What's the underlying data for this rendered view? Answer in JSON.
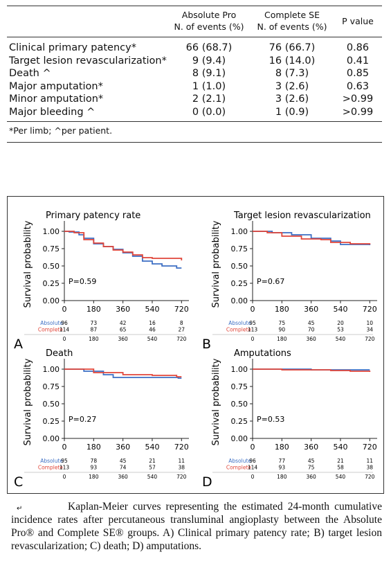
{
  "table": {
    "headers": [
      [
        "Absolute Pro",
        "N. of events (%)"
      ],
      [
        "Complete SE",
        "N. of events (%)"
      ],
      [
        "P value"
      ]
    ],
    "rows": [
      [
        "Clinical primary patency*",
        "66 (68.7)",
        "76 (66.7)",
        "0.86"
      ],
      [
        "Target lesion revascularization*",
        "9 (9.4)",
        "16 (14.0)",
        "0.41"
      ],
      [
        "Death ^",
        "8 (9.1)",
        "8 (7.3)",
        "0.85"
      ],
      [
        "Major amputation*",
        "1 (1.0)",
        "3 (2.6)",
        "0.63"
      ],
      [
        "Minor amputation*",
        "2 (2.1)",
        "3 (2.6)",
        ">0.99"
      ],
      [
        "Major bleeding ^",
        "0 (0.0)",
        "1 (0.9)",
        ">0.99"
      ]
    ],
    "footnote": "*Per limb; ^per patient."
  },
  "chart_data": [
    {
      "type": "line",
      "step": true,
      "panel": "A",
      "title": "Primary patency rate",
      "ylabel": "Survival probability",
      "annotation": "P=0.59",
      "xlim": [
        0,
        740
      ],
      "ylim": [
        0,
        1.05
      ],
      "xticks": [
        0,
        180,
        360,
        540,
        720
      ],
      "yticks": [
        {
          "value": 1,
          "label": "1.00"
        },
        0.75,
        {
          "value": 0.5,
          "label": "0.50"
        },
        0.25,
        {
          "value": 0,
          "label": "0.00"
        }
      ],
      "series": [
        {
          "name": "Absolute",
          "color": "#3d6fc4",
          "x": [
            0,
            30,
            90,
            120,
            180,
            240,
            300,
            360,
            420,
            480,
            540,
            600,
            690,
            720
          ],
          "values": [
            1,
            0.99,
            0.95,
            0.9,
            0.82,
            0.78,
            0.74,
            0.69,
            0.64,
            0.57,
            0.53,
            0.5,
            0.47,
            0.47
          ],
          "at_risk": [
            96,
            73,
            42,
            16,
            8
          ]
        },
        {
          "name": "Complete",
          "color": "#e0463a",
          "x": [
            0,
            60,
            120,
            180,
            240,
            300,
            360,
            420,
            480,
            540,
            600,
            720
          ],
          "values": [
            1,
            0.98,
            0.88,
            0.83,
            0.78,
            0.73,
            0.7,
            0.66,
            0.62,
            0.61,
            0.61,
            0.58
          ],
          "at_risk": [
            114,
            87,
            65,
            46,
            27
          ]
        }
      ]
    },
    {
      "type": "line",
      "step": true,
      "panel": "B",
      "title": "Target lesion revascularization",
      "ylabel": "Survival probability",
      "annotation": "P=0.67",
      "xlim": [
        0,
        740
      ],
      "ylim": [
        0,
        1.05
      ],
      "xticks": [
        0,
        180,
        360,
        540,
        720
      ],
      "yticks": [
        {
          "value": 1,
          "label": "1.00"
        },
        0.75,
        {
          "value": 0.5,
          "label": "0.50"
        },
        0.25,
        {
          "value": 0,
          "label": "0.00"
        }
      ],
      "series": [
        {
          "name": "Absolute",
          "color": "#3d6fc4",
          "x": [
            0,
            120,
            240,
            360,
            480,
            540,
            720
          ],
          "values": [
            1,
            0.98,
            0.95,
            0.9,
            0.86,
            0.81,
            0.8
          ],
          "at_risk": [
            95,
            75,
            45,
            20,
            10
          ]
        },
        {
          "name": "Complete",
          "color": "#e0463a",
          "x": [
            0,
            90,
            180,
            300,
            420,
            480,
            600,
            720
          ],
          "values": [
            1,
            0.98,
            0.93,
            0.89,
            0.88,
            0.84,
            0.82,
            0.81
          ],
          "at_risk": [
            113,
            90,
            70,
            53,
            34
          ]
        }
      ]
    },
    {
      "type": "line",
      "step": true,
      "panel": "C",
      "title": "Death",
      "ylabel": "Survival probability",
      "annotation": "P=0.27",
      "xlim": [
        0,
        740
      ],
      "ylim": [
        0,
        1.05
      ],
      "xticks": [
        0,
        180,
        360,
        540,
        720
      ],
      "yticks": [
        {
          "value": 1,
          "label": "1.00"
        },
        0.75,
        {
          "value": 0.5,
          "label": "0.50"
        },
        0.25,
        {
          "value": 0,
          "label": "0.00"
        }
      ],
      "series": [
        {
          "name": "Absolute",
          "color": "#3d6fc4",
          "x": [
            0,
            120,
            240,
            300,
            540,
            700,
            720
          ],
          "values": [
            1,
            0.97,
            0.92,
            0.88,
            0.88,
            0.87,
            0.87
          ],
          "at_risk": [
            95,
            78,
            45,
            21,
            11
          ]
        },
        {
          "name": "Complete",
          "color": "#e0463a",
          "x": [
            0,
            180,
            360,
            540,
            690,
            720
          ],
          "values": [
            1,
            0.95,
            0.92,
            0.91,
            0.89,
            0.89
          ],
          "at_risk": [
            113,
            93,
            74,
            57,
            38
          ]
        }
      ]
    },
    {
      "type": "line",
      "step": true,
      "panel": "D",
      "title": "Amputations",
      "ylabel": "Survival probability",
      "annotation": "P=0.53",
      "xlim": [
        0,
        740
      ],
      "ylim": [
        0,
        1.05
      ],
      "xticks": [
        0,
        180,
        360,
        540,
        720
      ],
      "yticks": [
        {
          "value": 1,
          "label": "1.00"
        },
        0.75,
        {
          "value": 0.5,
          "label": "0.50"
        },
        0.25,
        {
          "value": 0,
          "label": "0.00"
        }
      ],
      "series": [
        {
          "name": "Absolute",
          "color": "#3d6fc4",
          "x": [
            0,
            360,
            720
          ],
          "values": [
            1,
            0.99,
            0.99
          ],
          "at_risk": [
            96,
            77,
            45,
            21,
            11
          ]
        },
        {
          "name": "Complete",
          "color": "#e0463a",
          "x": [
            0,
            180,
            480,
            600,
            720
          ],
          "values": [
            1,
            0.99,
            0.98,
            0.97,
            0.96
          ],
          "at_risk": [
            114,
            93,
            75,
            58,
            38
          ]
        }
      ]
    }
  ],
  "caption": {
    "mark": "↵",
    "text": "Kaplan-Meier curves representing the estimated 24-month cumulative incidence rates after percutaneous transluminal angioplasty between the Absolute Pro® and Complete SE® groups. A) Clinical primary patency rate; B) target lesion revascularization; C) death; D) amputations."
  }
}
